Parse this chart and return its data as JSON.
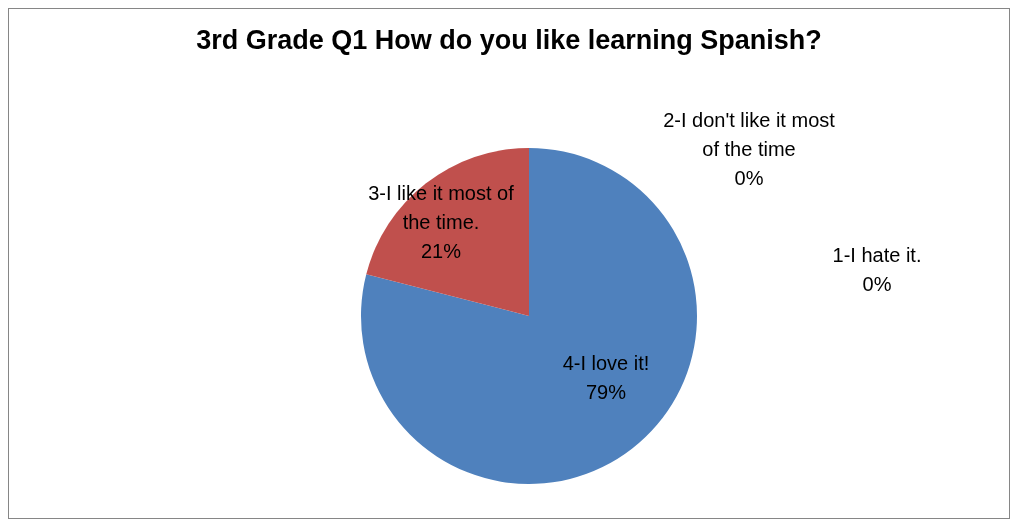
{
  "chart_data": {
    "type": "pie",
    "title": "3rd Grade Q1 How do you like learning Spanish?",
    "categories": [
      "4-I love it!",
      "3-I like it most of the time.",
      "2-I don't like it most of the time",
      "1-I hate it."
    ],
    "values": [
      79,
      21,
      0,
      0
    ],
    "colors": [
      "#4f81bd",
      "#c0504d",
      "#9bbb59",
      "#8064a2"
    ],
    "value_labels": [
      "79%",
      "21%",
      "0%",
      "0%"
    ],
    "legend": false
  }
}
